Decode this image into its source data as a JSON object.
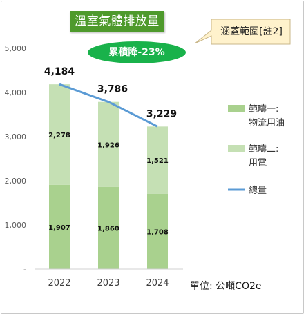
{
  "title": "溫室氣體排放量",
  "callout_label": "涵蓋範圍[註2]",
  "reduction_label": "累積降-23%",
  "unit_label": "單位: 公噸CO2e",
  "colors": {
    "scope1": "#a9d18e",
    "scope2": "#c5e0b4",
    "total_line": "#5b9bd5",
    "title_bg": "#4e9a2c",
    "pill_bg": "#19b24b"
  },
  "chart_data": {
    "type": "bar",
    "stacked": true,
    "categories": [
      "2022",
      "2023",
      "2024"
    ],
    "ylim": [
      0,
      5000
    ],
    "yticks": [
      {
        "value": 0,
        "label": "-"
      },
      {
        "value": 1000,
        "label": "1,000"
      },
      {
        "value": 2000,
        "label": "2,000"
      },
      {
        "value": 3000,
        "label": "3,000"
      },
      {
        "value": 4000,
        "label": "4,000"
      },
      {
        "value": 5000,
        "label": "5,000"
      }
    ],
    "series": [
      {
        "name": "範疇一: 物流用油",
        "legend_lines": [
          "範疇一:",
          "物流用油"
        ],
        "values": [
          1907,
          1860,
          1708
        ],
        "labels": [
          "1,907",
          "1,860",
          "1,708"
        ]
      },
      {
        "name": "範疇二: 用電",
        "legend_lines": [
          "範疇二:",
          "用電"
        ],
        "values": [
          2278,
          1926,
          1521
        ],
        "labels": [
          "2,278",
          "1,926",
          "1,521"
        ]
      }
    ],
    "total": {
      "name": "總量",
      "values": [
        4184,
        3786,
        3229
      ],
      "labels": [
        "4,184",
        "3,786",
        "3,229"
      ]
    },
    "grid": false,
    "legend_position": "right"
  }
}
